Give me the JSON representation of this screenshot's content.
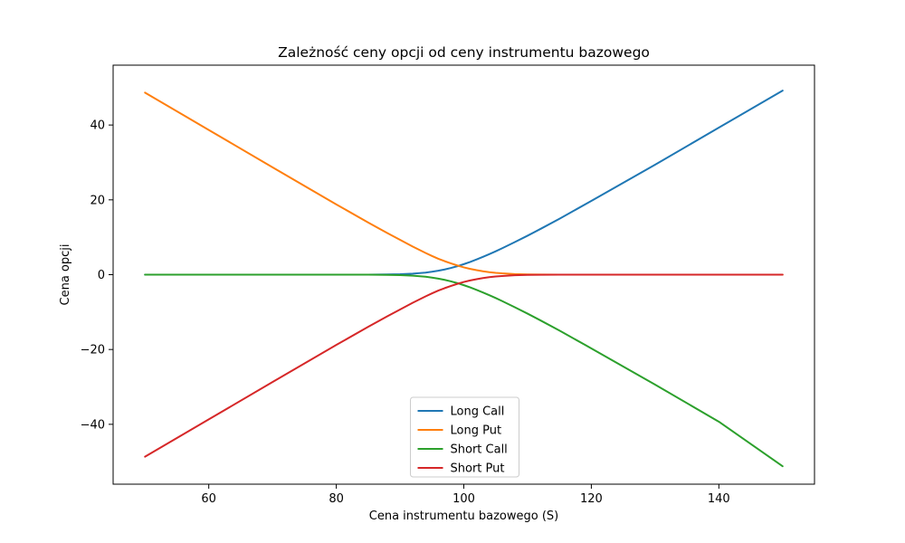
{
  "chart_data": {
    "type": "line",
    "title": "Zależność ceny opcji od ceny instrumentu bazowego",
    "xlabel": "Cena instrumentu bazowego (S)",
    "ylabel": "Cena opcji",
    "xlim": [
      45,
      155
    ],
    "ylim": [
      -56,
      56
    ],
    "xticks": [
      60,
      80,
      100,
      120,
      140
    ],
    "yticks": [
      -40,
      -20,
      0,
      20,
      40
    ],
    "xtick_labels": [
      "60",
      "80",
      "100",
      "120",
      "140"
    ],
    "ytick_labels": [
      "−40",
      "−20",
      "0",
      "20",
      "40"
    ],
    "grid": false,
    "legend_position": "lower-center",
    "x": [
      50,
      60,
      70,
      80,
      85,
      88,
      90,
      92,
      94,
      95,
      96,
      97,
      98,
      99,
      100,
      101,
      102,
      103,
      104,
      105,
      106,
      108,
      110,
      112,
      115,
      120,
      125,
      130,
      140,
      150
    ],
    "series": [
      {
        "name": "Long Call",
        "color": "#1f77b4",
        "values": [
          0.0,
          0.0,
          0.0,
          0.0,
          0.01,
          0.05,
          0.12,
          0.27,
          0.55,
          0.78,
          1.05,
          1.39,
          1.8,
          2.27,
          2.81,
          3.41,
          4.06,
          4.75,
          5.48,
          6.25,
          7.04,
          8.7,
          10.42,
          12.2,
          14.95,
          19.7,
          24.54,
          29.4,
          39.3,
          49.2
        ]
      },
      {
        "name": "Long Put",
        "color": "#ff7f0e",
        "values": [
          48.66,
          38.68,
          28.7,
          18.78,
          13.94,
          11.12,
          9.3,
          7.5,
          5.8,
          5.0,
          4.25,
          3.6,
          3.0,
          2.45,
          1.95,
          1.55,
          1.2,
          0.9,
          0.67,
          0.49,
          0.35,
          0.16,
          0.07,
          0.03,
          0.01,
          0.0,
          0.0,
          0.0,
          0.0,
          0.0
        ]
      },
      {
        "name": "Short Call",
        "color": "#2ca02c",
        "values": [
          0.0,
          0.0,
          0.0,
          0.0,
          -0.01,
          -0.05,
          -0.12,
          -0.27,
          -0.55,
          -0.78,
          -1.05,
          -1.39,
          -1.8,
          -2.27,
          -2.81,
          -3.41,
          -4.06,
          -4.75,
          -5.48,
          -6.25,
          -7.04,
          -8.7,
          -10.42,
          -12.2,
          -14.95,
          -19.7,
          -24.54,
          -29.4,
          -39.3,
          -51.2
        ]
      },
      {
        "name": "Short Put",
        "color": "#d62728",
        "values": [
          -48.66,
          -38.68,
          -28.7,
          -18.78,
          -13.94,
          -11.12,
          -9.3,
          -7.5,
          -5.8,
          -5.0,
          -4.25,
          -3.6,
          -3.0,
          -2.45,
          -1.95,
          -1.55,
          -1.2,
          -0.9,
          -0.67,
          -0.49,
          -0.35,
          -0.16,
          -0.07,
          -0.03,
          -0.01,
          0.0,
          0.0,
          0.0,
          0.0,
          0.0
        ]
      }
    ]
  }
}
